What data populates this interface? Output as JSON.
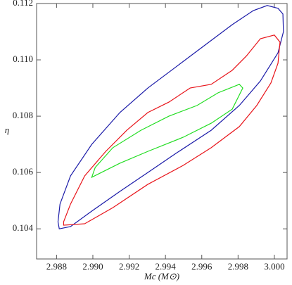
{
  "chart_data": {
    "type": "contour",
    "xlabel": "Mc (M⊙)",
    "ylabel": "η",
    "xlim": [
      2.9869,
      3.0007
    ],
    "ylim": [
      0.10293,
      0.112
    ],
    "xticks": [
      2.988,
      {
        "value": 2.99,
        "label": "2.990"
      },
      2.992,
      2.994,
      2.996,
      2.998,
      {
        "value": 3,
        "label": "3.000"
      }
    ],
    "yticks": [
      0.104,
      0.106,
      0.108,
      {
        "value": 0.11,
        "label": "0.110"
      },
      0.112
    ],
    "series": [
      {
        "color": "#1a1aa8",
        "x": [
          2.98815,
          2.98877,
          2.98994,
          2.99149,
          2.99303,
          2.99458,
          2.99652,
          2.99807,
          2.99923,
          3.0002,
          3.0005,
          3.00047,
          3.0002,
          2.99961,
          2.99884,
          2.99768,
          2.99613,
          2.99458,
          2.99303,
          2.99149,
          2.98994,
          2.98877,
          2.98819,
          2.98808
        ],
        "y": [
          0.104,
          0.10408,
          0.10463,
          0.10533,
          0.106,
          0.10668,
          0.1075,
          0.10838,
          0.10925,
          0.11025,
          0.111,
          0.11163,
          0.11183,
          0.11193,
          0.11175,
          0.11125,
          0.1105,
          0.10975,
          0.109,
          0.10813,
          0.107,
          0.10588,
          0.10488,
          0.10425
        ]
      },
      {
        "color": "#e8141a",
        "x": [
          2.98839,
          2.98955,
          2.9911,
          2.99303,
          2.99497,
          2.99652,
          2.99807,
          2.99903,
          2.99981,
          3.0002,
          3.00031,
          3.0,
          2.99923,
          2.99845,
          2.99768,
          2.99652,
          2.99536,
          2.99419,
          2.99303,
          2.99187,
          2.99071,
          2.98955,
          2.98877,
          2.98839
        ],
        "y": [
          0.10413,
          0.10418,
          0.10475,
          0.10558,
          0.10625,
          0.10688,
          0.10763,
          0.10838,
          0.10918,
          0.10988,
          0.11063,
          0.11088,
          0.11075,
          0.11013,
          0.10963,
          0.10913,
          0.109,
          0.1085,
          0.10813,
          0.1075,
          0.10675,
          0.10588,
          0.10488,
          0.10425
        ]
      },
      {
        "color": "#22dd22",
        "x": [
          2.98994,
          2.99149,
          2.99303,
          2.99497,
          2.99652,
          2.99768,
          2.99826,
          2.99807,
          2.9969,
          2.99574,
          2.99419,
          2.99265,
          2.9911,
          2.99013
        ],
        "y": [
          0.10583,
          0.10633,
          0.10675,
          0.10725,
          0.10775,
          0.10825,
          0.109,
          0.10913,
          0.10883,
          0.10838,
          0.108,
          0.1075,
          0.10688,
          0.10618
        ]
      }
    ]
  }
}
